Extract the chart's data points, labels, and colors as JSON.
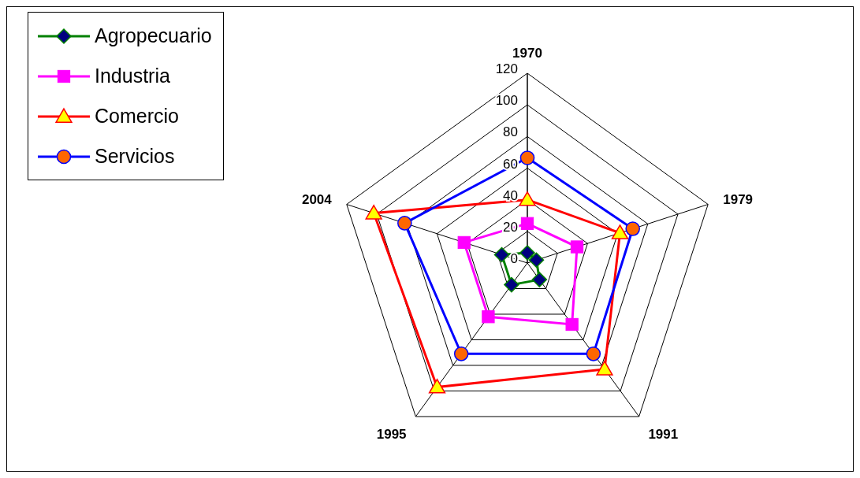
{
  "chart_data": {
    "type": "radar",
    "categories": [
      "1970",
      "1979",
      "1991",
      "1995",
      "2004"
    ],
    "series": [
      {
        "name": "Agropecuario",
        "color": "#008000",
        "marker": "diamond",
        "values": [
          6.5,
          6,
          13,
          17,
          17
        ]
      },
      {
        "name": "Industria",
        "color": "#ff00ff",
        "marker": "square",
        "values": [
          25,
          33,
          48,
          42,
          42
        ]
      },
      {
        "name": "Comercio",
        "color": "#ff0000",
        "marker": "triangle",
        "values": [
          40,
          61.5,
          83,
          97,
          102
        ]
      },
      {
        "name": "Servicios",
        "color": "#0000ff",
        "marker": "circle",
        "values": [
          66.5,
          70,
          71,
          71,
          81.5
        ]
      }
    ],
    "ylim": [
      0,
      120
    ],
    "yticks": [
      0,
      20,
      40,
      60,
      80,
      100,
      120
    ],
    "grid": true,
    "legend": "top left"
  }
}
